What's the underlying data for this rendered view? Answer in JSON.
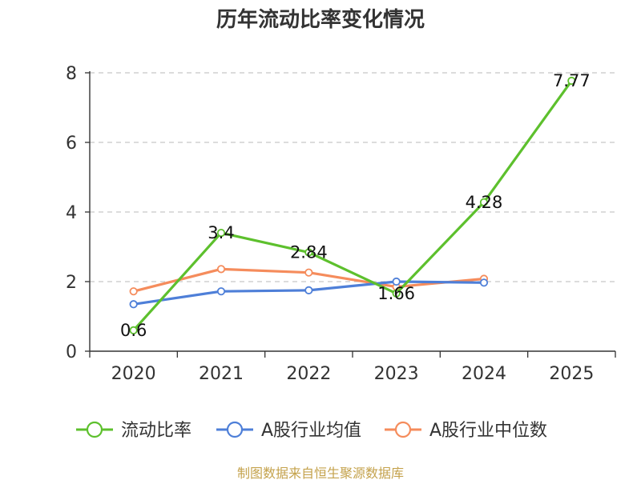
{
  "chart_data": {
    "type": "line",
    "title": "历年流动比率变化情况",
    "categories": [
      "2020",
      "2021",
      "2022",
      "2023",
      "2024",
      "2025"
    ],
    "ylim": [
      0,
      8
    ],
    "yticks": [
      "0",
      "2",
      "4",
      "6",
      "8"
    ],
    "grid": true,
    "legend_position": "bottom",
    "series": [
      {
        "name": "流动比率",
        "color": "#5dc02d",
        "values": [
          0.6,
          3.4,
          2.84,
          1.66,
          4.28,
          7.77
        ],
        "labels": [
          "0.6",
          "3.4",
          "2.84",
          "1.66",
          "4.28",
          "7.77"
        ]
      },
      {
        "name": "A股行业均值",
        "color": "#4e7fd8",
        "values": [
          1.35,
          1.72,
          1.75,
          2.0,
          1.97,
          null
        ]
      },
      {
        "name": "A股行业中位数",
        "color": "#f58c5c",
        "values": [
          1.72,
          2.36,
          2.26,
          1.85,
          2.08,
          null
        ]
      }
    ],
    "source": "制图数据来自恒生聚源数据库"
  }
}
